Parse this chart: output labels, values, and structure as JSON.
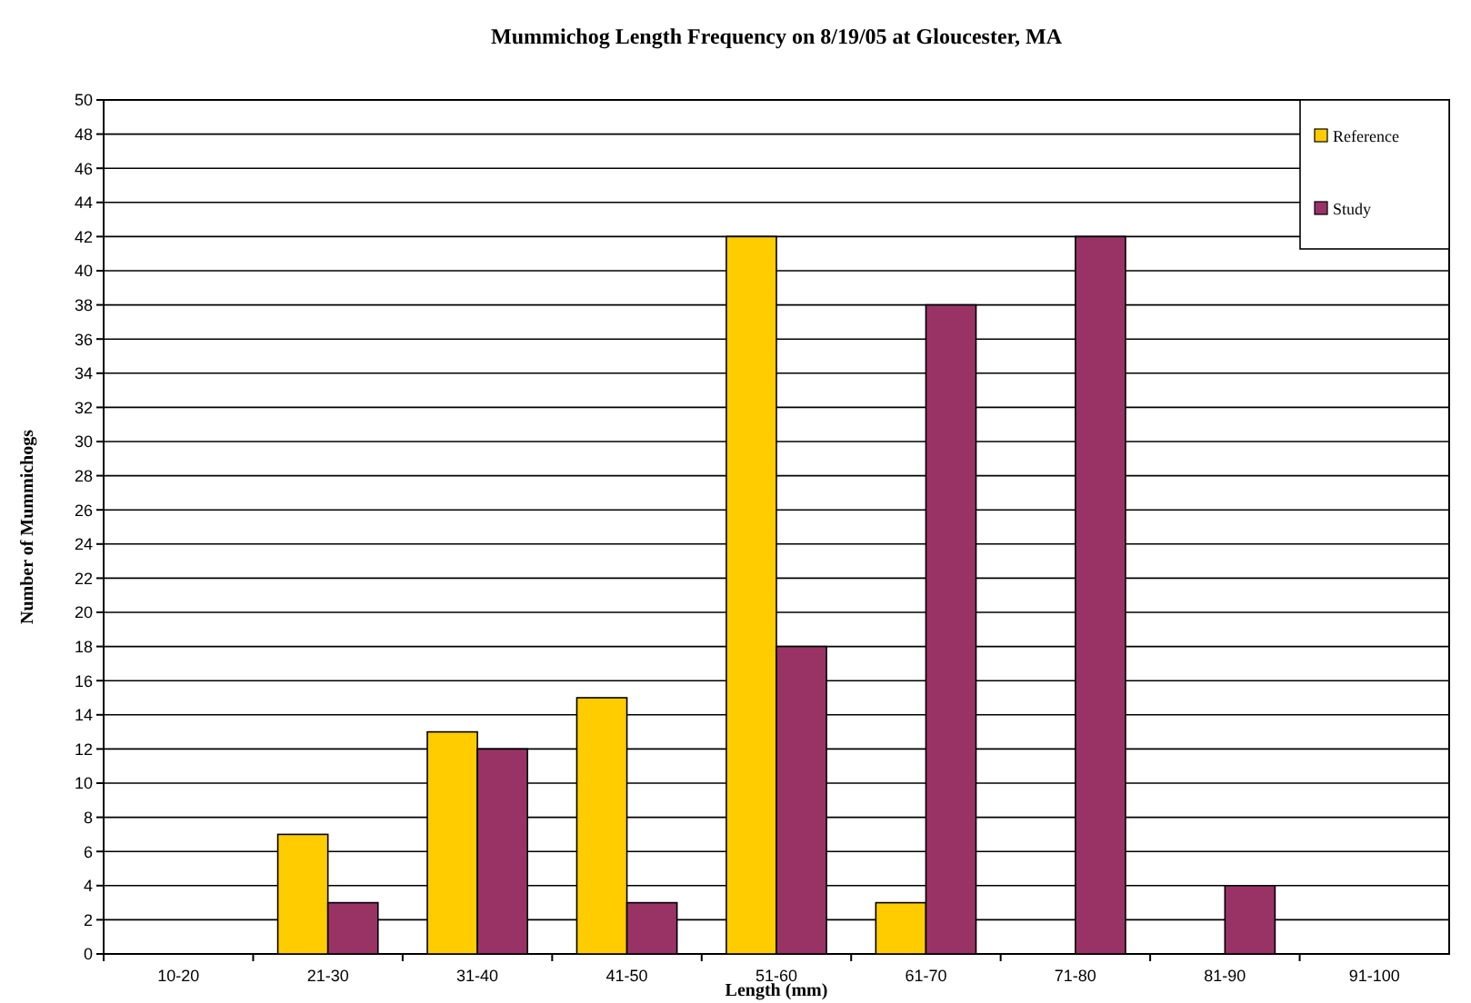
{
  "chart_data": {
    "type": "bar",
    "title": "Mummichog Length Frequency on 8/19/05 at Gloucester, MA",
    "xlabel": "Length (mm)",
    "ylabel": "Number of Mummichogs",
    "categories": [
      "10-20",
      "21-30",
      "31-40",
      "41-50",
      "51-60",
      "61-70",
      "71-80",
      "81-90",
      "91-100"
    ],
    "series": [
      {
        "name": "Reference",
        "color": "#ffcc00",
        "values": [
          0,
          7,
          13,
          15,
          42,
          3,
          0,
          0,
          0
        ]
      },
      {
        "name": "Study",
        "color": "#993366",
        "values": [
          0,
          3,
          12,
          3,
          18,
          38,
          42,
          4,
          0
        ]
      }
    ],
    "ylim": [
      0,
      50
    ],
    "yticks": [
      0,
      2,
      4,
      6,
      8,
      10,
      12,
      14,
      16,
      18,
      20,
      22,
      24,
      26,
      28,
      30,
      32,
      34,
      36,
      38,
      40,
      42,
      44,
      46,
      48,
      50
    ],
    "grid": "y",
    "legend": "top right"
  }
}
